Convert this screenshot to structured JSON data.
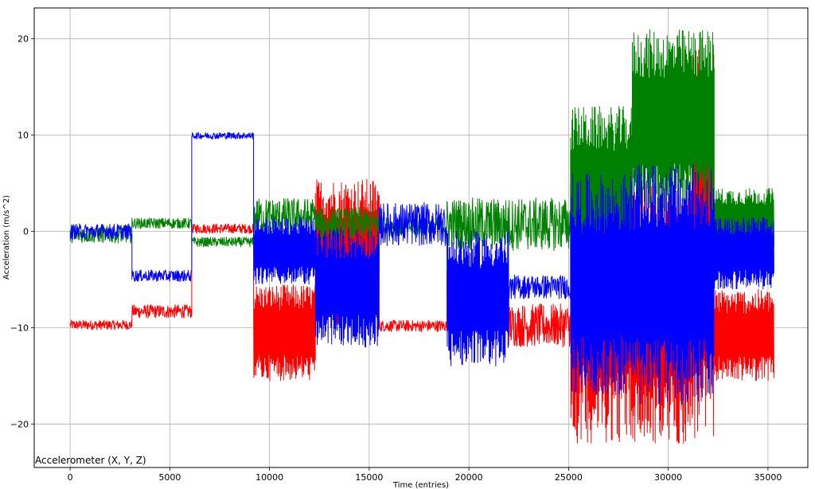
{
  "chart_data": {
    "type": "line",
    "title": "Accelerometer (X, Y, Z)",
    "xlabel": "Time (entries)",
    "ylabel": "Acceleration (m/s^2)",
    "xlim": [
      -1800,
      37000
    ],
    "ylim": [
      -24.5,
      23.2
    ],
    "grid": true,
    "xticks": [
      0,
      5000,
      10000,
      15000,
      20000,
      25000,
      30000,
      35000
    ],
    "yticks": [
      -20,
      -10,
      0,
      10,
      20
    ],
    "ytick_labels": [
      "−20",
      "−10",
      "0",
      "10",
      "20"
    ],
    "colors": {
      "x": "#ff0000",
      "y": "#008000",
      "z": "#0000ff"
    },
    "series": [
      {
        "key": "x",
        "color": "#ff0000",
        "segments": [
          {
            "x": [
              0,
              3100
            ],
            "lo": -10.2,
            "hi": -9.2
          },
          {
            "x": [
              3100,
              6100
            ],
            "lo": -9.0,
            "hi": -7.6
          },
          {
            "x": [
              6100,
              9200
            ],
            "lo": -0.2,
            "hi": 0.8
          },
          {
            "x": [
              9200,
              12300
            ],
            "lo": -15.5,
            "hi": -5.5
          },
          {
            "x": [
              12300,
              15500
            ],
            "lo": -10,
            "hi": 5.5
          },
          {
            "x": [
              15500,
              18900
            ],
            "lo": -10.4,
            "hi": -9.2
          },
          {
            "x": [
              18900,
              22000
            ],
            "lo": -10.5,
            "hi": -4
          },
          {
            "x": [
              22000,
              25100
            ],
            "lo": -12,
            "hi": -7.5
          },
          {
            "x": [
              25100,
              28200
            ],
            "lo": -22,
            "hi": 8
          },
          {
            "x": [
              28200,
              31200
            ],
            "lo": -22.2,
            "hi": 5
          },
          {
            "x": [
              31200,
              32300
            ],
            "lo": -22,
            "hi": 19
          },
          {
            "x": [
              32300,
              35300
            ],
            "lo": -15.5,
            "hi": -6
          }
        ]
      },
      {
        "key": "y",
        "color": "#008000",
        "segments": [
          {
            "x": [
              0,
              3100
            ],
            "lo": -1.2,
            "hi": 0.6
          },
          {
            "x": [
              3100,
              6100
            ],
            "lo": 0.3,
            "hi": 1.4
          },
          {
            "x": [
              6100,
              9200
            ],
            "lo": -1.6,
            "hi": -0.6
          },
          {
            "x": [
              9200,
              12300
            ],
            "lo": -0.5,
            "hi": 3.5
          },
          {
            "x": [
              12300,
              15500
            ],
            "lo": -1,
            "hi": 2.5
          },
          {
            "x": [
              15500,
              18900
            ],
            "lo": -0.5,
            "hi": 1.5
          },
          {
            "x": [
              18900,
              25100
            ],
            "lo": -2,
            "hi": 3.5
          },
          {
            "x": [
              25100,
              28200
            ],
            "lo": -4,
            "hi": 13
          },
          {
            "x": [
              28200,
              32300
            ],
            "lo": 2,
            "hi": 21
          },
          {
            "x": [
              32300,
              35300
            ],
            "lo": -2,
            "hi": 4.5
          }
        ]
      },
      {
        "key": "z",
        "color": "#0000ff",
        "segments": [
          {
            "x": [
              0,
              3100
            ],
            "lo": -0.8,
            "hi": 0.8
          },
          {
            "x": [
              3100,
              6100
            ],
            "lo": -5.2,
            "hi": -4
          },
          {
            "x": [
              6100,
              9200
            ],
            "lo": 9.6,
            "hi": 10.3
          },
          {
            "x": [
              9200,
              12300
            ],
            "lo": -5.5,
            "hi": 1.5
          },
          {
            "x": [
              12300,
              15500
            ],
            "lo": -12,
            "hi": 0.5
          },
          {
            "x": [
              15500,
              18900
            ],
            "lo": -1.5,
            "hi": 3
          },
          {
            "x": [
              18900,
              22000
            ],
            "lo": -14,
            "hi": 0
          },
          {
            "x": [
              22000,
              25100
            ],
            "lo": -7,
            "hi": -4.5
          },
          {
            "x": [
              25100,
              28200
            ],
            "lo": -17,
            "hi": 6
          },
          {
            "x": [
              28200,
              32300
            ],
            "lo": -18,
            "hi": 7
          },
          {
            "x": [
              32300,
              35300
            ],
            "lo": -6,
            "hi": 1.5
          }
        ]
      }
    ]
  }
}
